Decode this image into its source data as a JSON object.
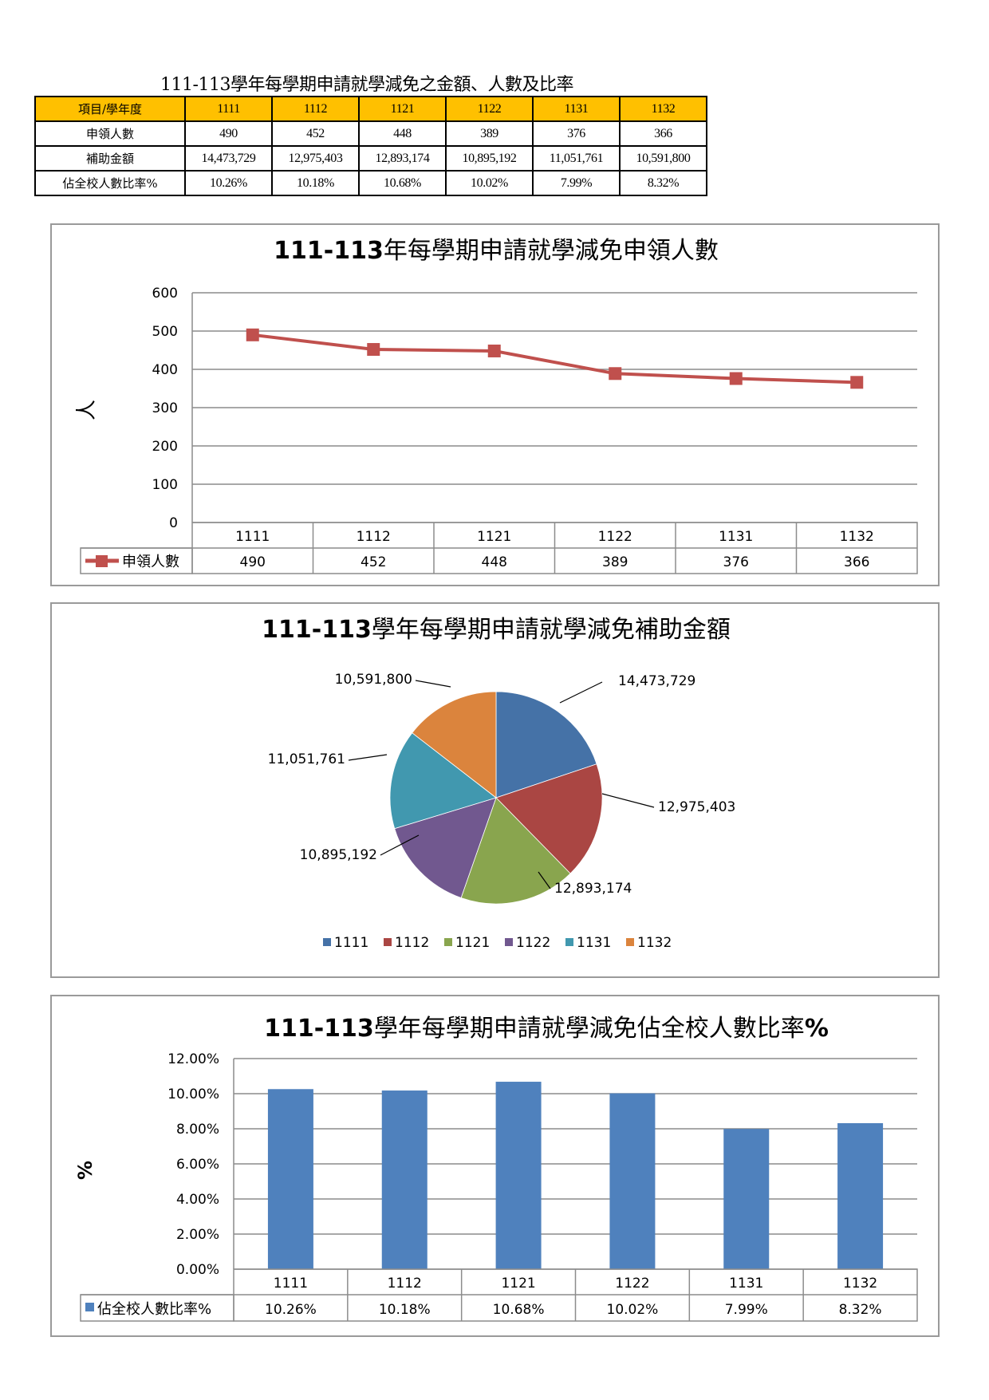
{
  "document": {
    "title": "111-113學年每學期申請就學減免之金額、人數及比率"
  },
  "summary_table": {
    "header": [
      "項目/學年度",
      "1111",
      "1112",
      "1121",
      "1122",
      "1131",
      "1132"
    ],
    "rows": [
      {
        "label": "申領人數",
        "values": [
          "490",
          "452",
          "448",
          "389",
          "376",
          "366"
        ]
      },
      {
        "label": "補助金額",
        "values": [
          "14,473,729",
          "12,975,403",
          "12,893,174",
          "10,895,192",
          "11,051,761",
          "10,591,800"
        ]
      },
      {
        "label": "佔全校人數比率%",
        "values": [
          "10.26%",
          "10.18%",
          "10.68%",
          "10.02%",
          "7.99%",
          "8.32%"
        ]
      }
    ],
    "header_color": "#FFC000"
  },
  "charts": {
    "line": {
      "title_bold": "111-113",
      "title_rest": "年每學期申請就學減免申領人數",
      "ylabel": "人",
      "y_ticks": [
        "0",
        "100",
        "200",
        "300",
        "400",
        "500",
        "600"
      ],
      "legend": "申領人數",
      "color": "#C0504D"
    },
    "pie": {
      "title_bold": "111-113",
      "title_rest": "學年每學期申請就學減免補助金額"
    },
    "bar": {
      "title_bold": "111-113",
      "title_rest": "學年每學期申請就學減免佔全校人數比率",
      "title_suffix": "%",
      "ylabel": "%",
      "y_ticks": [
        "0.00%",
        "2.00%",
        "4.00%",
        "6.00%",
        "8.00%",
        "10.00%",
        "12.00%"
      ],
      "legend": "佔全校人數比率%",
      "color": "#4F81BD"
    }
  },
  "chart_data": [
    {
      "type": "line",
      "title": "111-113年每學期申請就學減免申領人數",
      "categories": [
        "1111",
        "1112",
        "1121",
        "1122",
        "1131",
        "1132"
      ],
      "series": [
        {
          "name": "申領人數",
          "values": [
            490,
            452,
            448,
            389,
            376,
            366
          ],
          "color": "#C0504D",
          "marker": "square"
        }
      ],
      "xlabel": "",
      "ylabel": "人",
      "ylim": [
        0,
        600
      ],
      "yticks": [
        0,
        100,
        200,
        300,
        400,
        500,
        600
      ],
      "grid": true,
      "legend_position": "data-table",
      "data_table": true
    },
    {
      "type": "pie",
      "title": "111-113學年每學期申請就學減免補助金額",
      "categories": [
        "1111",
        "1112",
        "1121",
        "1122",
        "1131",
        "1132"
      ],
      "values": [
        14473729,
        12975403,
        12893174,
        10895192,
        11051761,
        10591800
      ],
      "labels": [
        "14,473,729",
        "12,975,403",
        "12,893,174",
        "10,895,192",
        "11,051,761",
        "10,591,800"
      ],
      "colors": [
        "#4572A7",
        "#AA4643",
        "#89A54E",
        "#71588F",
        "#4198AF",
        "#DB843D"
      ],
      "legend_position": "bottom"
    },
    {
      "type": "bar",
      "title": "111-113學年每學期申請就學減免佔全校人數比率%",
      "categories": [
        "1111",
        "1112",
        "1121",
        "1122",
        "1131",
        "1132"
      ],
      "series": [
        {
          "name": "佔全校人數比率%",
          "values": [
            10.26,
            10.18,
            10.68,
            10.02,
            7.99,
            8.32
          ],
          "labels": [
            "10.26%",
            "10.18%",
            "10.68%",
            "10.02%",
            "7.99%",
            "8.32%"
          ],
          "color": "#4F81BD"
        }
      ],
      "xlabel": "",
      "ylabel": "%",
      "ylim": [
        0,
        12
      ],
      "yticks": [
        "0.00%",
        "2.00%",
        "4.00%",
        "6.00%",
        "8.00%",
        "10.00%",
        "12.00%"
      ],
      "grid": true,
      "legend_position": "data-table",
      "data_table": true
    }
  ]
}
